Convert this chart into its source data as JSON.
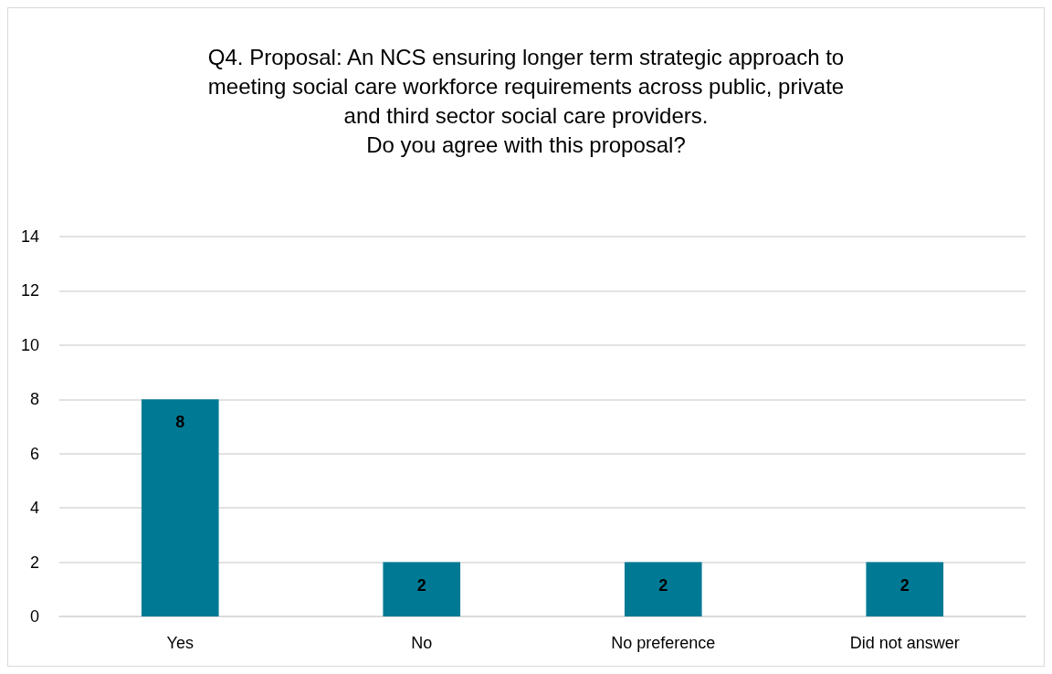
{
  "chart_data": {
    "type": "bar",
    "title": "Q4. Proposal: An NCS ensuring longer term strategic approach to\nmeeting social care workforce requirements across public, private\nand third sector social care providers.\nDo you agree with this proposal?",
    "categories": [
      "Yes",
      "No",
      "No preference",
      "Did not answer"
    ],
    "values": [
      8,
      2,
      2,
      2
    ],
    "color": "#007a94",
    "ylim": [
      0,
      14
    ],
    "yticks": [
      0,
      2,
      4,
      6,
      8,
      10,
      12,
      14
    ],
    "grid": "y",
    "data_labels": true
  }
}
